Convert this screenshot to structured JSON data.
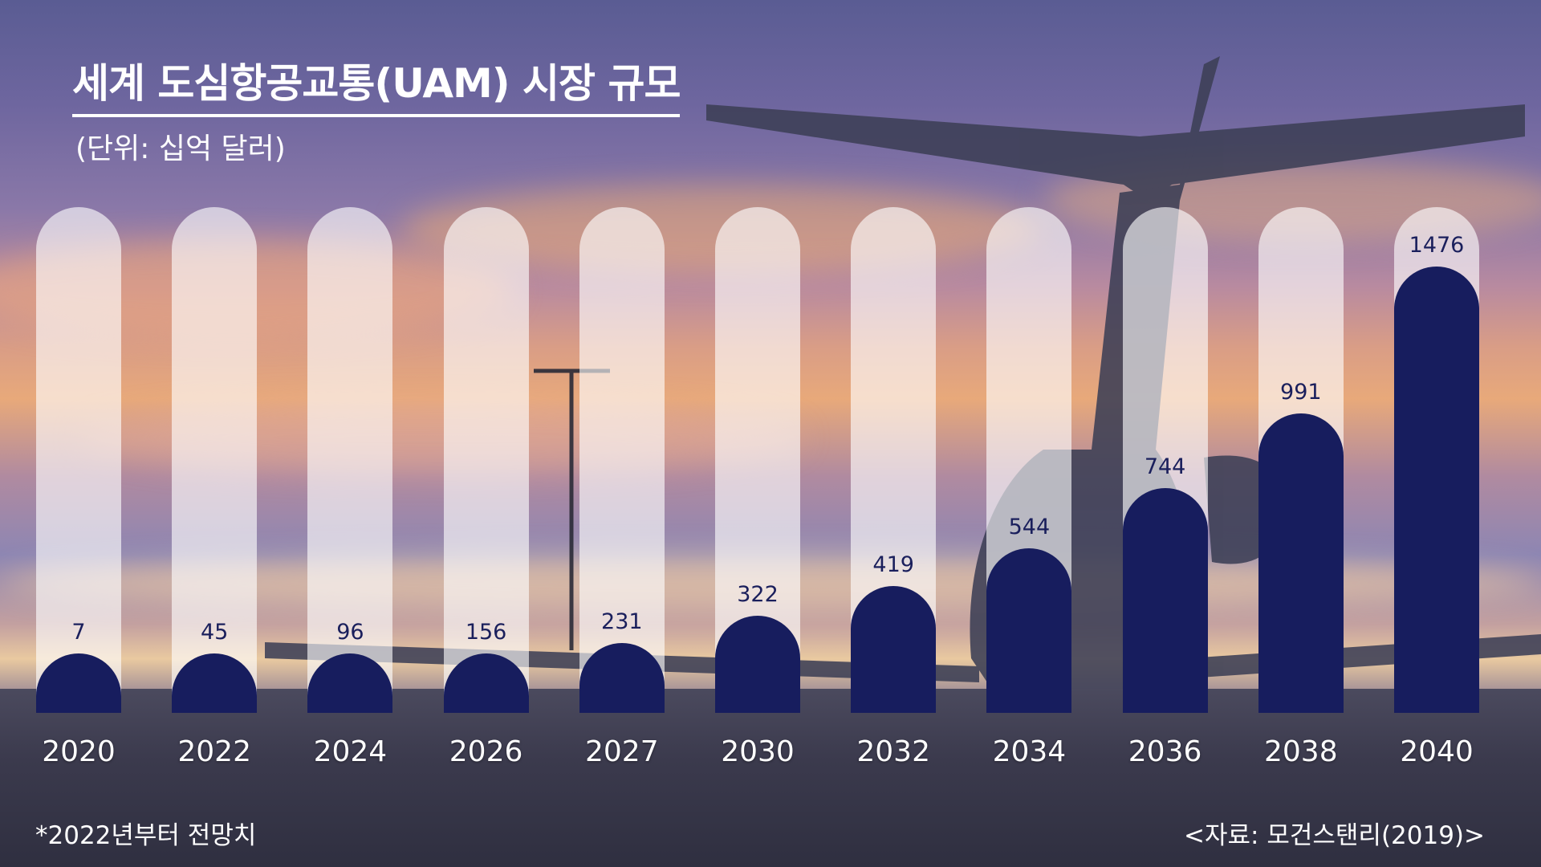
{
  "header": {
    "title": "세계 도심항공교통(UAM) 시장 규모",
    "unit": "(단위: 십억 달러)"
  },
  "footer": {
    "note": "*2022년부터 전망치",
    "source": "<자료: 모건스탠리(2019)>"
  },
  "colors": {
    "bar": "#171d5e",
    "track": "rgba(255,255,255,0.62)",
    "value_label": "#1a1f5c",
    "axis_label": "#ffffff"
  },
  "chart_data": {
    "type": "bar",
    "title": "세계 도심항공교통(UAM) 시장 규모",
    "subtitle": "(단위: 십억 달러)",
    "categories": [
      "2020",
      "2022",
      "2024",
      "2026",
      "2027",
      "2030",
      "2032",
      "2034",
      "2036",
      "2038",
      "2040"
    ],
    "values": [
      7,
      45,
      96,
      156,
      231,
      322,
      419,
      544,
      744,
      991,
      1476
    ],
    "ylim": [
      0,
      1476
    ],
    "grid": false,
    "legend": "none"
  }
}
